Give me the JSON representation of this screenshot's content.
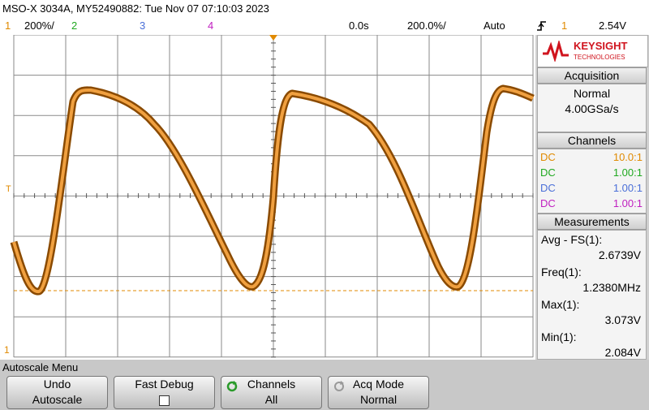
{
  "header": {
    "title": "MSO-X 3034A, MY52490882: Tue Nov 07 07:10:03 2023"
  },
  "channel_bar": {
    "ch1": "1",
    "ch1_scale": "200%/",
    "ch2": "2",
    "ch3": "3",
    "ch4": "4",
    "time_offset": "0.0s",
    "time_scale": "200.0%/",
    "trigger_mode": "Auto",
    "trigger_source": "1",
    "trigger_level": "2.54V"
  },
  "markers": {
    "trigger": "T",
    "ch1": "1"
  },
  "side_panel": {
    "brand": "KEYSIGHT",
    "brand_sub": "TECHNOLOGIES",
    "acquisition": {
      "title": "Acquisition",
      "mode": "Normal",
      "rate": "4.00GSa/s"
    },
    "channels": {
      "title": "Channels",
      "rows": [
        {
          "coupling": "DC",
          "probe": "10.0:1",
          "color": "#e08a00"
        },
        {
          "coupling": "DC",
          "probe": "1.00:1",
          "color": "#1fa81f"
        },
        {
          "coupling": "DC",
          "probe": "1.00:1",
          "color": "#4a6fd8"
        },
        {
          "coupling": "DC",
          "probe": "1.00:1",
          "color": "#c020c0"
        }
      ]
    },
    "measurements": {
      "title": "Measurements",
      "items": [
        {
          "label": "Avg - FS(1):",
          "value": "2.6739V"
        },
        {
          "label": "Freq(1):",
          "value": "1.2380MHz"
        },
        {
          "label": "Max(1):",
          "value": "3.073V"
        },
        {
          "label": "Min(1):",
          "value": "2.084V"
        }
      ]
    }
  },
  "menu": {
    "title": "Autoscale Menu",
    "buttons": [
      {
        "label": "Undo",
        "value": "Autoscale"
      },
      {
        "label": "Fast Debug"
      },
      {
        "label": "Channels",
        "value": "All"
      },
      {
        "label": "Acq Mode",
        "value": "Normal"
      }
    ]
  }
}
